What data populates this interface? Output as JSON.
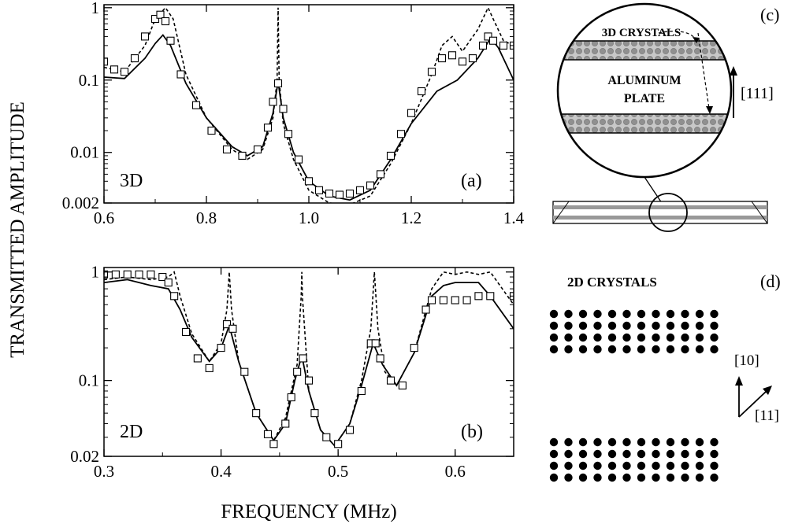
{
  "figure": {
    "ylabel": "TRANSMITTED AMPLITUDE",
    "xlabel": "FREQUENCY (MHz)"
  },
  "chart_data": [
    {
      "type": "line",
      "panel_label": "(a)",
      "annotation": "3D",
      "y_scale": "log",
      "xlim": [
        0.6,
        1.4
      ],
      "ylim": [
        0.002,
        1.1
      ],
      "x_ticks": [
        "0.6",
        "0.8",
        "1.0",
        "1.2",
        "1.4"
      ],
      "y_ticks": [
        "0.002",
        "0.01",
        "0.1",
        "1"
      ],
      "y_tick_values": [
        0.002,
        0.01,
        0.1,
        1
      ],
      "x_tick_values": [
        0.6,
        0.8,
        1.0,
        1.2,
        1.4
      ],
      "series": [
        {
          "style": "solid",
          "x": [
            0.6,
            0.64,
            0.68,
            0.7,
            0.715,
            0.73,
            0.76,
            0.8,
            0.85,
            0.88,
            0.91,
            0.93,
            0.94,
            0.95,
            0.97,
            1.0,
            1.04,
            1.08,
            1.12,
            1.16,
            1.2,
            1.25,
            1.29,
            1.33,
            1.355,
            1.37,
            1.4
          ],
          "y": [
            0.11,
            0.105,
            0.2,
            0.32,
            0.42,
            0.3,
            0.09,
            0.03,
            0.012,
            0.009,
            0.012,
            0.035,
            0.095,
            0.03,
            0.01,
            0.004,
            0.0025,
            0.0022,
            0.003,
            0.008,
            0.025,
            0.07,
            0.1,
            0.2,
            0.38,
            0.28,
            0.1
          ]
        },
        {
          "style": "dashed",
          "x": [
            0.6,
            0.64,
            0.68,
            0.7,
            0.72,
            0.735,
            0.76,
            0.8,
            0.85,
            0.88,
            0.91,
            0.93,
            0.938,
            0.94,
            0.942,
            0.95,
            0.97,
            1.0,
            1.04,
            1.08,
            1.12,
            1.16,
            1.2,
            1.24,
            1.26,
            1.28,
            1.3,
            1.33,
            1.35,
            1.36,
            1.38,
            1.4
          ],
          "y": [
            0.15,
            0.13,
            0.3,
            0.7,
            1.0,
            0.7,
            0.12,
            0.03,
            0.011,
            0.008,
            0.011,
            0.03,
            0.1,
            1.0,
            0.1,
            0.025,
            0.008,
            0.003,
            0.002,
            0.0019,
            0.0025,
            0.007,
            0.025,
            0.12,
            0.3,
            0.4,
            0.25,
            0.5,
            1.0,
            0.7,
            0.35,
            0.3
          ]
        },
        {
          "style": "squares",
          "x": [
            0.6,
            0.62,
            0.64,
            0.66,
            0.68,
            0.7,
            0.71,
            0.72,
            0.73,
            0.75,
            0.78,
            0.81,
            0.84,
            0.87,
            0.9,
            0.92,
            0.93,
            0.94,
            0.95,
            0.96,
            0.98,
            1.0,
            1.02,
            1.04,
            1.06,
            1.08,
            1.1,
            1.12,
            1.14,
            1.16,
            1.18,
            1.2,
            1.22,
            1.24,
            1.26,
            1.28,
            1.3,
            1.32,
            1.34,
            1.35,
            1.36,
            1.38,
            1.4
          ],
          "y": [
            0.18,
            0.14,
            0.13,
            0.2,
            0.4,
            0.7,
            0.8,
            0.65,
            0.35,
            0.12,
            0.045,
            0.02,
            0.011,
            0.009,
            0.011,
            0.022,
            0.05,
            0.09,
            0.04,
            0.018,
            0.008,
            0.004,
            0.003,
            0.0027,
            0.0026,
            0.0027,
            0.003,
            0.0035,
            0.005,
            0.009,
            0.018,
            0.035,
            0.07,
            0.13,
            0.2,
            0.22,
            0.18,
            0.2,
            0.3,
            0.4,
            0.35,
            0.3,
            0.3
          ]
        }
      ]
    },
    {
      "type": "line",
      "panel_label": "(b)",
      "annotation": "2D",
      "y_scale": "log",
      "xlim": [
        0.3,
        0.65
      ],
      "ylim": [
        0.02,
        1.1
      ],
      "x_ticks": [
        "0.3",
        "0.4",
        "0.5",
        "0.6"
      ],
      "y_ticks": [
        "0.02",
        "0.1",
        "1"
      ],
      "y_tick_values": [
        0.02,
        0.1,
        1
      ],
      "x_tick_values": [
        0.3,
        0.4,
        0.5,
        0.6
      ],
      "series": [
        {
          "style": "solid",
          "x": [
            0.3,
            0.32,
            0.34,
            0.355,
            0.365,
            0.375,
            0.39,
            0.4,
            0.407,
            0.415,
            0.43,
            0.445,
            0.455,
            0.463,
            0.469,
            0.475,
            0.485,
            0.497,
            0.51,
            0.52,
            0.53,
            0.538,
            0.55,
            0.565,
            0.58,
            0.59,
            0.6,
            0.61,
            0.62,
            0.63,
            0.65
          ],
          "y": [
            0.8,
            0.85,
            0.75,
            0.7,
            0.45,
            0.25,
            0.15,
            0.2,
            0.32,
            0.15,
            0.05,
            0.028,
            0.04,
            0.1,
            0.17,
            0.08,
            0.035,
            0.025,
            0.04,
            0.09,
            0.22,
            0.14,
            0.09,
            0.18,
            0.6,
            0.75,
            0.8,
            0.8,
            0.8,
            0.6,
            0.3
          ]
        },
        {
          "style": "dashed",
          "x": [
            0.3,
            0.32,
            0.34,
            0.355,
            0.36,
            0.365,
            0.375,
            0.39,
            0.4,
            0.405,
            0.407,
            0.409,
            0.415,
            0.43,
            0.445,
            0.455,
            0.465,
            0.4685,
            0.469,
            0.4695,
            0.475,
            0.485,
            0.497,
            0.51,
            0.52,
            0.528,
            0.531,
            0.534,
            0.54,
            0.55,
            0.565,
            0.58,
            0.59,
            0.6,
            0.61,
            0.62,
            0.63,
            0.65
          ],
          "y": [
            0.85,
            0.9,
            0.85,
            0.9,
            1.0,
            0.6,
            0.27,
            0.15,
            0.22,
            0.45,
            1.0,
            0.45,
            0.15,
            0.05,
            0.028,
            0.045,
            0.14,
            0.6,
            1.0,
            0.6,
            0.08,
            0.035,
            0.025,
            0.04,
            0.1,
            0.3,
            1.0,
            0.3,
            0.12,
            0.09,
            0.18,
            0.7,
            1.0,
            0.95,
            1.0,
            0.95,
            1.0,
            0.5
          ]
        },
        {
          "style": "squares",
          "x": [
            0.3,
            0.31,
            0.32,
            0.33,
            0.34,
            0.35,
            0.355,
            0.36,
            0.37,
            0.38,
            0.39,
            0.4,
            0.405,
            0.41,
            0.42,
            0.43,
            0.44,
            0.445,
            0.455,
            0.46,
            0.465,
            0.47,
            0.475,
            0.48,
            0.49,
            0.5,
            0.51,
            0.52,
            0.528,
            0.532,
            0.536,
            0.545,
            0.555,
            0.565,
            0.575,
            0.58,
            0.59,
            0.6,
            0.61,
            0.62,
            0.63,
            0.65
          ],
          "y": [
            0.95,
            0.95,
            0.95,
            0.95,
            0.95,
            0.9,
            0.8,
            0.6,
            0.28,
            0.16,
            0.13,
            0.2,
            0.33,
            0.3,
            0.12,
            0.05,
            0.032,
            0.026,
            0.04,
            0.07,
            0.12,
            0.16,
            0.1,
            0.05,
            0.03,
            0.026,
            0.035,
            0.08,
            0.22,
            0.22,
            0.16,
            0.1,
            0.09,
            0.2,
            0.45,
            0.55,
            0.55,
            0.55,
            0.55,
            0.6,
            0.6,
            0.6
          ]
        }
      ]
    }
  ],
  "diagram_c": {
    "panel_label": "(c)",
    "crystals_label": "3D CRYSTALS",
    "plate_label_line1": "ALUMINUM",
    "plate_label_line2": "PLATE",
    "direction_label": "[111]"
  },
  "diagram_d": {
    "panel_label": "(d)",
    "crystals_label": "2D CRYSTALS",
    "dir1_label": "[10]",
    "dir2_label": "[11]"
  }
}
